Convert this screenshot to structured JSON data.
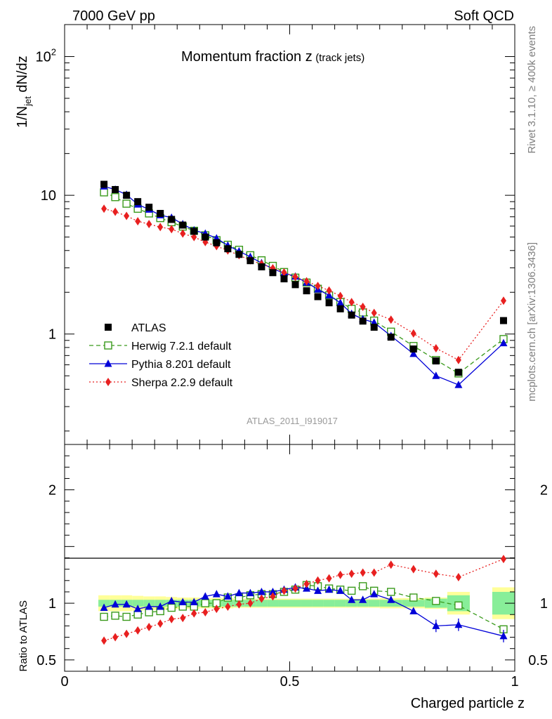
{
  "header": {
    "left": "7000 GeV pp",
    "right": "Soft QCD"
  },
  "side_labels": {
    "top": "Rivet 3.1.10, ≥ 400k events",
    "bottom": "mcplots.cern.ch [arXiv:1306.3436]"
  },
  "chart_data": {
    "type": "scatter",
    "title_main": "Momentum fraction z",
    "title_sub": "(track jets)",
    "ylabel_main": "1/N",
    "ylabel_sub": "jet",
    "ylabel_rest": " dN/dz",
    "ratio_ylabel": "Ratio to ATLAS",
    "xlabel": "Charged particle z",
    "reference_name": "ATLAS_2011_I919017",
    "xlim": [
      0,
      1
    ],
    "ylim": [
      0.16,
      170
    ],
    "ylog": true,
    "ratio_ylim": [
      0.4,
      2.4
    ],
    "x_tick_labels": [
      "0",
      "0.5",
      "1"
    ],
    "x_tick_values": [
      0,
      0.5,
      1
    ],
    "y_tick_labels": [
      "1",
      "10"
    ],
    "y_tick_values": [
      1,
      10
    ],
    "y_tick_exp_base": "10",
    "y_tick_exp_power": "2",
    "y_tick_exp_value": 100,
    "ratio_tick_labels": [
      "0.5",
      "1",
      "2"
    ],
    "ratio_tick_values": [
      0.5,
      1,
      2
    ],
    "legend_position": "bottom-left",
    "x": [
      0.0875,
      0.1125,
      0.1375,
      0.1625,
      0.1875,
      0.2125,
      0.2375,
      0.2625,
      0.2875,
      0.3125,
      0.3375,
      0.3625,
      0.3875,
      0.4125,
      0.4375,
      0.4625,
      0.4875,
      0.5125,
      0.5375,
      0.5625,
      0.5875,
      0.6125,
      0.6375,
      0.6625,
      0.6875,
      0.725,
      0.775,
      0.825,
      0.875,
      0.975
    ],
    "data": {
      "name": "ATLAS",
      "values": [
        12.0,
        11.0,
        10.0,
        9.0,
        8.2,
        7.4,
        6.7,
        6.1,
        5.5,
        5.0,
        4.55,
        4.12,
        3.75,
        3.38,
        3.05,
        2.77,
        2.5,
        2.27,
        2.05,
        1.86,
        1.68,
        1.52,
        1.37,
        1.24,
        1.12,
        0.95,
        0.78,
        0.64,
        0.53,
        1.25
      ],
      "band_x": [
        [
          0.075,
          0.1
        ],
        [
          0.1,
          0.125
        ],
        [
          0.125,
          0.15
        ],
        [
          0.15,
          0.175
        ],
        [
          0.175,
          0.2
        ],
        [
          0.2,
          0.225
        ],
        [
          0.225,
          0.25
        ],
        [
          0.25,
          0.275
        ],
        [
          0.275,
          0.3
        ],
        [
          0.3,
          0.325
        ],
        [
          0.325,
          0.35
        ],
        [
          0.35,
          0.375
        ],
        [
          0.375,
          0.4
        ],
        [
          0.4,
          0.425
        ],
        [
          0.425,
          0.45
        ],
        [
          0.45,
          0.475
        ],
        [
          0.475,
          0.5
        ],
        [
          0.5,
          0.525
        ],
        [
          0.525,
          0.55
        ],
        [
          0.55,
          0.575
        ],
        [
          0.575,
          0.6
        ],
        [
          0.6,
          0.625
        ],
        [
          0.625,
          0.65
        ],
        [
          0.65,
          0.675
        ],
        [
          0.675,
          0.7
        ],
        [
          0.7,
          0.75
        ],
        [
          0.75,
          0.8
        ],
        [
          0.8,
          0.85
        ],
        [
          0.85,
          0.9
        ],
        [
          0.95,
          1.0
        ]
      ],
      "stat_rel": [
        0.03,
        0.03,
        0.03,
        0.03,
        0.03,
        0.03,
        0.03,
        0.03,
        0.03,
        0.03,
        0.03,
        0.03,
        0.03,
        0.03,
        0.03,
        0.03,
        0.03,
        0.03,
        0.03,
        0.03,
        0.03,
        0.03,
        0.03,
        0.03,
        0.03,
        0.03,
        0.03,
        0.04,
        0.07,
        0.1
      ],
      "tot_rel": [
        0.07,
        0.07,
        0.07,
        0.065,
        0.06,
        0.06,
        0.055,
        0.05,
        0.05,
        0.045,
        0.045,
        0.045,
        0.04,
        0.04,
        0.04,
        0.04,
        0.04,
        0.04,
        0.04,
        0.04,
        0.04,
        0.04,
        0.04,
        0.04,
        0.04,
        0.045,
        0.045,
        0.05,
        0.1,
        0.14
      ]
    },
    "series": [
      {
        "name": "Herwig 7.2.1 default",
        "color": "#3a9a1c",
        "marker": "open-square",
        "line": "dashed",
        "values": [
          10.5,
          9.7,
          8.7,
          8.0,
          7.4,
          6.85,
          6.4,
          5.95,
          5.55,
          5.15,
          4.75,
          4.4,
          4.05,
          3.7,
          3.4,
          3.1,
          2.8,
          2.55,
          2.35,
          2.12,
          1.9,
          1.7,
          1.52,
          1.43,
          1.25,
          1.04,
          0.82,
          0.65,
          0.52,
          0.92
        ],
        "ratio": [
          0.88,
          0.89,
          0.88,
          0.9,
          0.92,
          0.93,
          0.96,
          0.97,
          0.97,
          1.0,
          1.0,
          1.05,
          1.05,
          1.07,
          1.08,
          1.08,
          1.1,
          1.12,
          1.16,
          1.15,
          1.13,
          1.12,
          1.11,
          1.15,
          1.11,
          1.1,
          1.05,
          1.02,
          0.98,
          0.77
        ]
      },
      {
        "name": "Pythia 8.201 default",
        "color": "#0000d8",
        "marker": "filled-triangle",
        "line": "solid",
        "values": [
          11.6,
          11.0,
          10.1,
          8.6,
          7.9,
          7.2,
          6.9,
          6.2,
          5.6,
          5.3,
          4.9,
          4.35,
          3.95,
          3.6,
          3.25,
          2.95,
          2.75,
          2.6,
          2.35,
          2.1,
          1.9,
          1.68,
          1.4,
          1.28,
          1.21,
          0.97,
          0.72,
          0.5,
          0.43,
          0.86
        ],
        "ratio": [
          0.96,
          0.99,
          0.99,
          0.95,
          0.97,
          0.97,
          1.02,
          1.01,
          1.01,
          1.06,
          1.08,
          1.06,
          1.09,
          1.09,
          1.1,
          1.1,
          1.12,
          1.14,
          1.13,
          1.11,
          1.12,
          1.11,
          1.03,
          1.03,
          1.08,
          1.03,
          0.93,
          0.8,
          0.81,
          0.71
        ]
      },
      {
        "name": "Sherpa 2.2.9 default",
        "color": "#e82020",
        "marker": "filled-diamond",
        "line": "dotted",
        "values": [
          8.0,
          7.6,
          7.1,
          6.5,
          6.2,
          5.9,
          5.7,
          5.3,
          5.0,
          4.6,
          4.3,
          4.0,
          3.7,
          3.4,
          3.2,
          2.98,
          2.78,
          2.58,
          2.4,
          2.22,
          2.06,
          1.88,
          1.7,
          1.57,
          1.42,
          1.27,
          1.01,
          0.79,
          0.65,
          1.74
        ],
        "ratio": [
          0.67,
          0.7,
          0.73,
          0.76,
          0.79,
          0.82,
          0.86,
          0.87,
          0.91,
          0.92,
          0.95,
          0.97,
          0.99,
          1.0,
          1.04,
          1.06,
          1.11,
          1.13,
          1.17,
          1.2,
          1.22,
          1.25,
          1.26,
          1.27,
          1.27,
          1.34,
          1.3,
          1.26,
          1.23,
          1.39
        ]
      }
    ]
  }
}
